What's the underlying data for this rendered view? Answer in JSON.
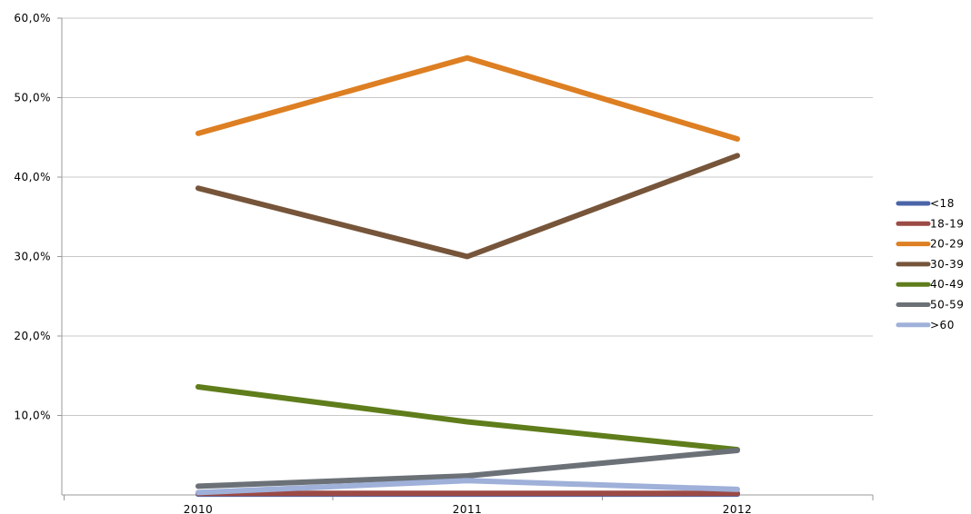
{
  "chart_data": {
    "type": "line",
    "categories": [
      "2010",
      "2011",
      "2012"
    ],
    "ylim": [
      0,
      60
    ],
    "yticks": [
      {
        "value": 10,
        "label": "10,0%"
      },
      {
        "value": 20,
        "label": "20,0%"
      },
      {
        "value": 30,
        "label": "30,0%"
      },
      {
        "value": 40,
        "label": "40,0%"
      },
      {
        "value": 50,
        "label": "50,0%"
      },
      {
        "value": 60,
        "label": "60,0%"
      }
    ],
    "grid": true,
    "legend_position": "right",
    "series": [
      {
        "name": "<18",
        "color": "#4a64a8",
        "values": [
          0.1,
          0.1,
          0.1
        ]
      },
      {
        "name": "18-19",
        "color": "#9c4a45",
        "values": [
          0.2,
          0.2,
          0.2
        ]
      },
      {
        "name": "20-29",
        "color": "#dd7f22",
        "values": [
          45.5,
          55.0,
          44.8
        ]
      },
      {
        "name": "30-39",
        "color": "#76553a",
        "values": [
          38.6,
          30.0,
          42.7
        ]
      },
      {
        "name": "40-49",
        "color": "#5f7d1b",
        "values": [
          13.6,
          9.2,
          5.7
        ]
      },
      {
        "name": "50-59",
        "color": "#6b7177",
        "values": [
          1.1,
          2.4,
          5.6
        ]
      },
      {
        "name": ">60",
        "color": "#9fb0d9",
        "values": [
          0.3,
          1.8,
          0.7
        ]
      }
    ]
  }
}
